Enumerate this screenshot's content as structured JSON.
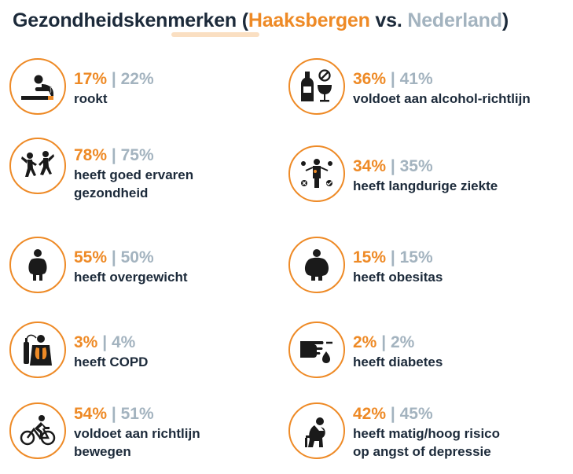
{
  "title": {
    "main": "Gezondheidskenmerken",
    "open_paren": " (",
    "local": "Haaksbergen",
    "vs": " vs. ",
    "national": "Nederland",
    "close_paren": ")"
  },
  "colors": {
    "local": "#ee8a26",
    "national": "#a3b3bf",
    "text": "#1c2a3a"
  },
  "separator": "|",
  "items": [
    {
      "icon": "smoking-icon",
      "local": "17%",
      "national": "22%",
      "label_line1": "rookt",
      "label_line2": ""
    },
    {
      "icon": "alcohol-icon",
      "local": "36%",
      "national": "41%",
      "label_line1": "voldoet aan alcohol-richtlijn",
      "label_line2": ""
    },
    {
      "icon": "dancing-people-icon",
      "local": "78%",
      "national": "75%",
      "label_line1": "heeft goed ervaren",
      "label_line2": "gezondheid"
    },
    {
      "icon": "chronic-illness-icon",
      "local": "34%",
      "national": "35%",
      "label_line1": "heeft langdurige ziekte",
      "label_line2": ""
    },
    {
      "icon": "overweight-icon",
      "local": "55%",
      "national": "50%",
      "label_line1": "heeft overgewicht",
      "label_line2": ""
    },
    {
      "icon": "obesity-icon",
      "local": "15%",
      "national": "15%",
      "label_line1": "heeft obesitas",
      "label_line2": ""
    },
    {
      "icon": "copd-icon",
      "local": "3%",
      "national": "4%",
      "label_line1": "heeft COPD",
      "label_line2": ""
    },
    {
      "icon": "diabetes-icon",
      "local": "2%",
      "national": "2%",
      "label_line1": "heeft diabetes",
      "label_line2": ""
    },
    {
      "icon": "cycling-icon",
      "local": "54%",
      "national": "51%",
      "label_line1": "voldoet aan richtlijn",
      "label_line2": "bewegen"
    },
    {
      "icon": "distressed-person-icon",
      "local": "42%",
      "national": "45%",
      "label_line1": "heeft matig/hoog risico",
      "label_line2": "op angst of depressie"
    }
  ]
}
